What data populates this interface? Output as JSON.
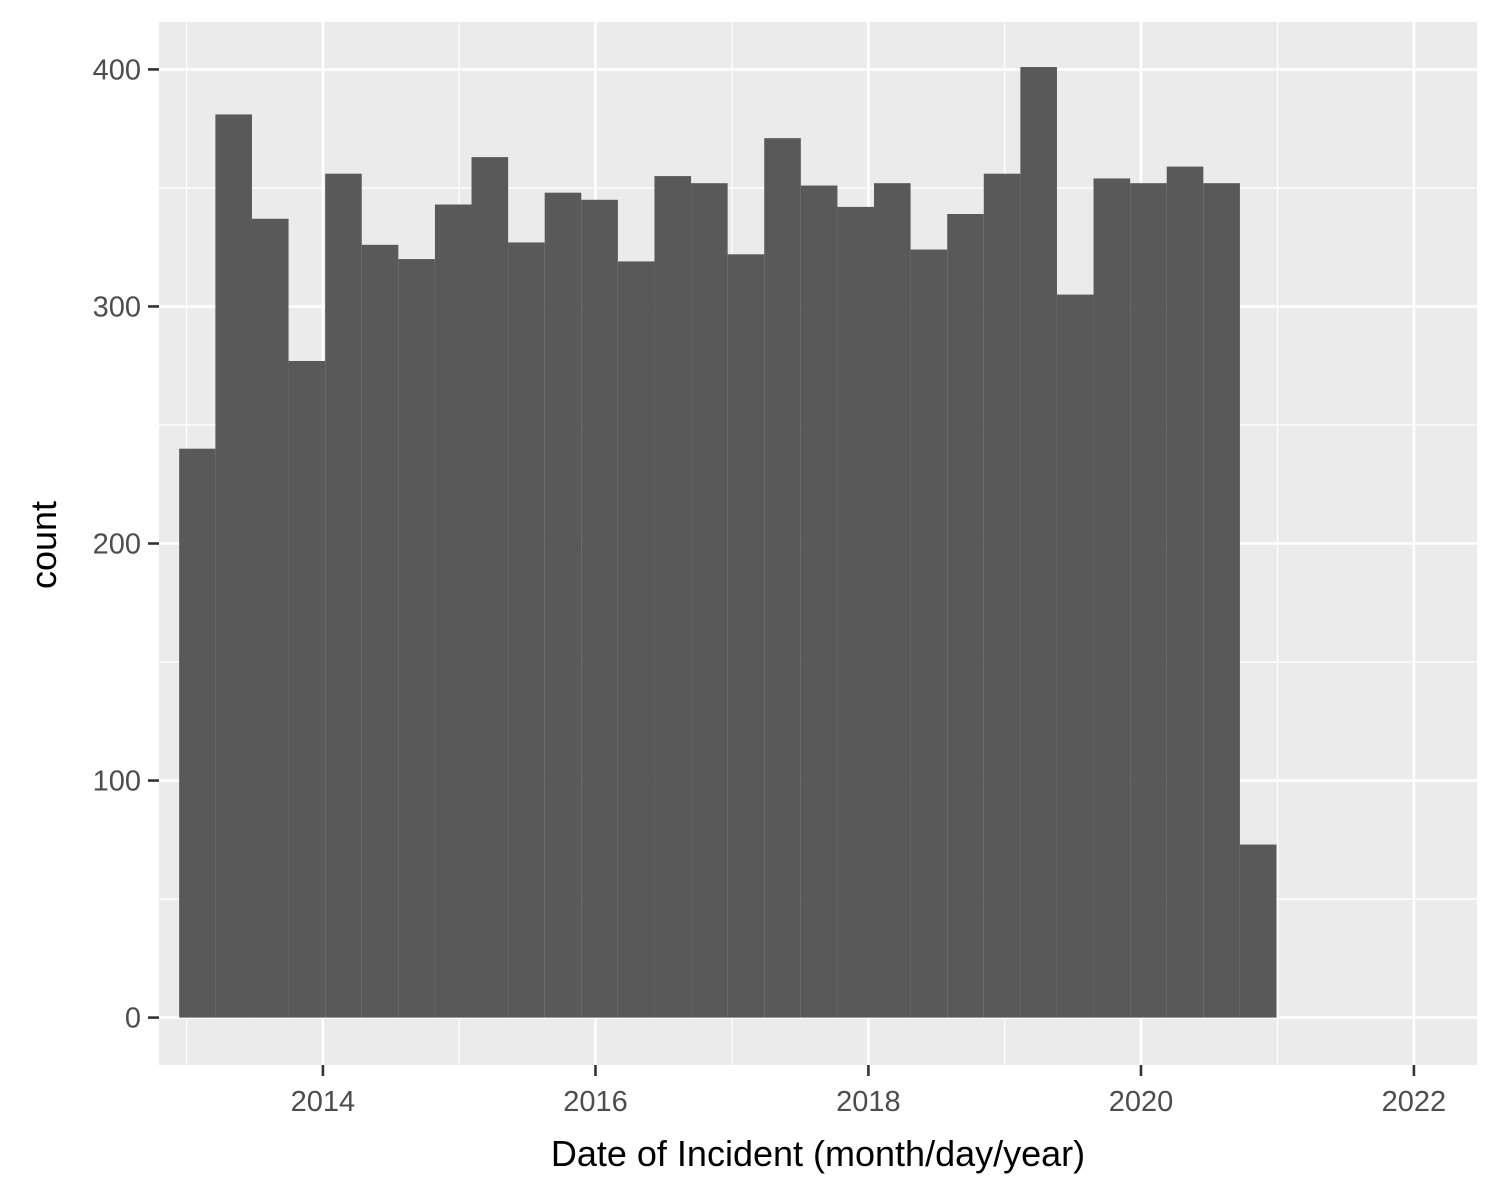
{
  "chart_data": {
    "type": "bar",
    "subtype": "histogram",
    "xlabel": "Date of Incident (month/day/year)",
    "ylabel": "count",
    "x_ticks": [
      "2014",
      "2016",
      "2018",
      "2020",
      "2022"
    ],
    "y_ticks": [
      "0",
      "100",
      "200",
      "300",
      "400"
    ],
    "xlim": [
      "2012-10-19",
      "2022-06-19"
    ],
    "ylim": [
      -20,
      420
    ],
    "grid": true,
    "legend": "none",
    "bins": [
      {
        "start": "2012-12-12",
        "end": "2013-03-19",
        "count": 240
      },
      {
        "start": "2013-03-19",
        "end": "2013-06-25",
        "count": 381
      },
      {
        "start": "2013-06-25",
        "end": "2013-10-01",
        "count": 337
      },
      {
        "start": "2013-10-01",
        "end": "2014-01-07",
        "count": 277
      },
      {
        "start": "2014-01-07",
        "end": "2014-04-15",
        "count": 356
      },
      {
        "start": "2014-04-15",
        "end": "2014-07-22",
        "count": 326
      },
      {
        "start": "2014-07-22",
        "end": "2014-10-28",
        "count": 320
      },
      {
        "start": "2014-10-28",
        "end": "2015-02-03",
        "count": 343
      },
      {
        "start": "2015-02-03",
        "end": "2015-05-12",
        "count": 363
      },
      {
        "start": "2015-05-12",
        "end": "2015-08-18",
        "count": 327
      },
      {
        "start": "2015-08-18",
        "end": "2015-11-24",
        "count": 348
      },
      {
        "start": "2015-11-24",
        "end": "2016-03-01",
        "count": 345
      },
      {
        "start": "2016-03-01",
        "end": "2016-06-07",
        "count": 319
      },
      {
        "start": "2016-06-07",
        "end": "2016-09-13",
        "count": 355
      },
      {
        "start": "2016-09-13",
        "end": "2016-12-20",
        "count": 352
      },
      {
        "start": "2016-12-20",
        "end": "2017-03-28",
        "count": 322
      },
      {
        "start": "2017-03-28",
        "end": "2017-07-04",
        "count": 371
      },
      {
        "start": "2017-07-04",
        "end": "2017-10-10",
        "count": 351
      },
      {
        "start": "2017-10-10",
        "end": "2018-01-16",
        "count": 342
      },
      {
        "start": "2018-01-16",
        "end": "2018-04-24",
        "count": 352
      },
      {
        "start": "2018-04-24",
        "end": "2018-07-31",
        "count": 324
      },
      {
        "start": "2018-07-31",
        "end": "2018-11-06",
        "count": 339
      },
      {
        "start": "2018-11-06",
        "end": "2019-02-12",
        "count": 356
      },
      {
        "start": "2019-02-12",
        "end": "2019-05-21",
        "count": 401
      },
      {
        "start": "2019-05-21",
        "end": "2019-08-27",
        "count": 305
      },
      {
        "start": "2019-08-27",
        "end": "2019-12-03",
        "count": 354
      },
      {
        "start": "2019-12-03",
        "end": "2020-03-10",
        "count": 352
      },
      {
        "start": "2020-03-10",
        "end": "2020-06-16",
        "count": 359
      },
      {
        "start": "2020-06-16",
        "end": "2020-09-22",
        "count": 352
      },
      {
        "start": "2020-09-22",
        "end": "2020-12-29",
        "count": 73
      }
    ],
    "colors": {
      "panel_background": "#ebebeb",
      "grid_line": "#ffffff",
      "bar_fill": "#595959",
      "tick_text": "#4d4d4d",
      "axis_title": "#000000"
    }
  }
}
